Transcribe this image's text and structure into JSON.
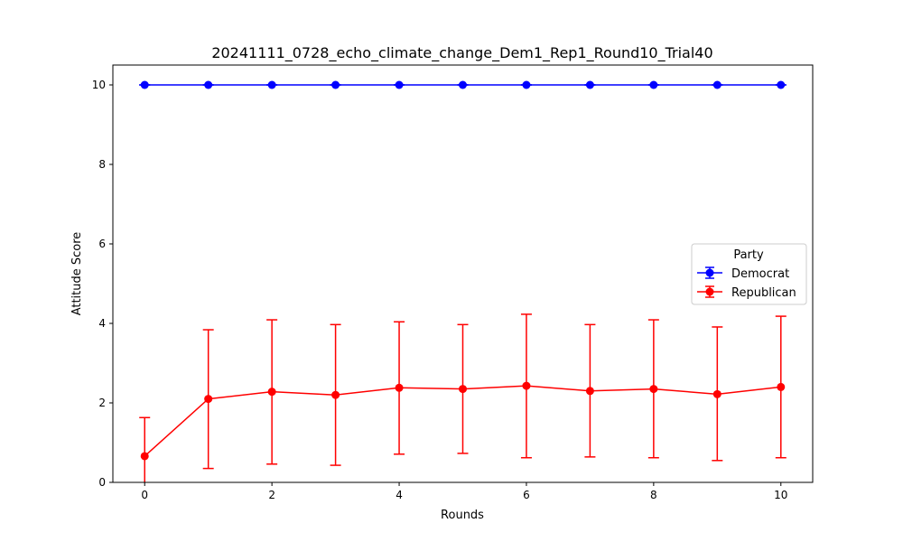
{
  "chart_data": {
    "type": "line",
    "title": "20241111_0728_echo_climate_change_Dem1_Rep1_Round10_Trial40",
    "xlabel": "Rounds",
    "ylabel": "Attitude Score",
    "xlim": [
      -0.5,
      10.5
    ],
    "ylim": [
      0,
      10.5
    ],
    "xticks": [
      0,
      2,
      4,
      6,
      8,
      10
    ],
    "yticks": [
      0,
      2,
      4,
      6,
      8,
      10
    ],
    "grid": false,
    "legend": {
      "title": "Party",
      "placement": "center-right"
    },
    "x": [
      0,
      1,
      2,
      3,
      4,
      5,
      6,
      7,
      8,
      9,
      10
    ],
    "series": [
      {
        "name": "Democrat",
        "color": "#0000ff",
        "values": [
          10,
          10,
          10,
          10,
          10,
          10,
          10,
          10,
          10,
          10,
          10
        ],
        "error_low": [
          10,
          10,
          10,
          10,
          10,
          10,
          10,
          10,
          10,
          10,
          10
        ],
        "error_high": [
          10,
          10,
          10,
          10,
          10,
          10,
          10,
          10,
          10,
          10,
          10
        ]
      },
      {
        "name": "Republican",
        "color": "#ff0000",
        "values": [
          0.66,
          2.1,
          2.28,
          2.2,
          2.38,
          2.35,
          2.43,
          2.3,
          2.35,
          2.22,
          2.4
        ],
        "error_low": [
          -0.31,
          0.35,
          0.46,
          0.43,
          0.71,
          0.73,
          0.62,
          0.64,
          0.62,
          0.55,
          0.62
        ],
        "error_high": [
          1.63,
          3.84,
          4.09,
          3.97,
          4.04,
          3.97,
          4.23,
          3.97,
          4.09,
          3.91,
          4.18
        ]
      }
    ]
  }
}
